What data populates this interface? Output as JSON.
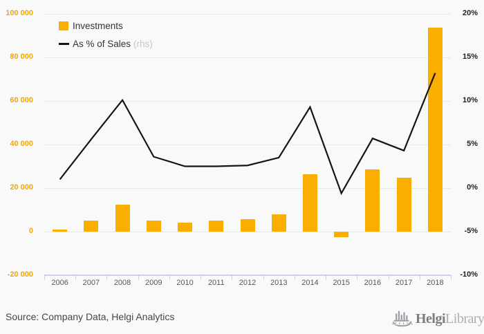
{
  "legend": {
    "investments_label": "Investments",
    "sales_label": "As % of Sales",
    "sales_suffix": "(rhs)"
  },
  "chart_data": {
    "type": "bar",
    "categories": [
      "2006",
      "2007",
      "2008",
      "2009",
      "2010",
      "2011",
      "2012",
      "2013",
      "2014",
      "2015",
      "2016",
      "2017",
      "2018"
    ],
    "series": [
      {
        "name": "Investments",
        "type": "bar",
        "axis": "left",
        "color": "#f9ae00",
        "values": [
          1000,
          5000,
          12300,
          5000,
          4000,
          5000,
          5600,
          7800,
          26300,
          -2400,
          28700,
          24700,
          93500
        ]
      },
      {
        "name": "As % of Sales",
        "type": "line",
        "axis": "right",
        "color": "#141414",
        "values": [
          1.0,
          5.6,
          10.1,
          3.6,
          2.5,
          2.5,
          2.6,
          3.5,
          9.3,
          -0.6,
          5.7,
          4.3,
          13.2
        ]
      }
    ],
    "left_axis": {
      "min": -20000,
      "max": 100000,
      "ticks": [
        {
          "label": "100 000",
          "value": 100000
        },
        {
          "label": "80 000",
          "value": 80000
        },
        {
          "label": "60 000",
          "value": 60000
        },
        {
          "label": "40 000",
          "value": 40000
        },
        {
          "label": "20 000",
          "value": 20000
        },
        {
          "label": "0",
          "value": 0
        },
        {
          "label": "-20 000",
          "value": -20000
        }
      ]
    },
    "right_axis": {
      "min": -10,
      "max": 20,
      "ticks": [
        {
          "label": "20%",
          "value": 20
        },
        {
          "label": "15%",
          "value": 15
        },
        {
          "label": "10%",
          "value": 10
        },
        {
          "label": "5%",
          "value": 5
        },
        {
          "label": "0%",
          "value": 0
        },
        {
          "label": "-5%",
          "value": -5
        },
        {
          "label": "-10%",
          "value": -10
        }
      ]
    },
    "grid": true,
    "legend_position": "top-left",
    "title": "",
    "xlabel": "",
    "ylabel": ""
  },
  "footer": {
    "source": "Source: Company Data, Helgi Analytics",
    "logo_helgi": "Helgi",
    "logo_library": "Library."
  },
  "colors": {
    "background": "#f9f9f9",
    "bar": "#f9ae00",
    "line": "#141414",
    "left_axis_labels": "#f2a702",
    "grid": "#e9e9e9",
    "axis": "#c9d2e6"
  }
}
